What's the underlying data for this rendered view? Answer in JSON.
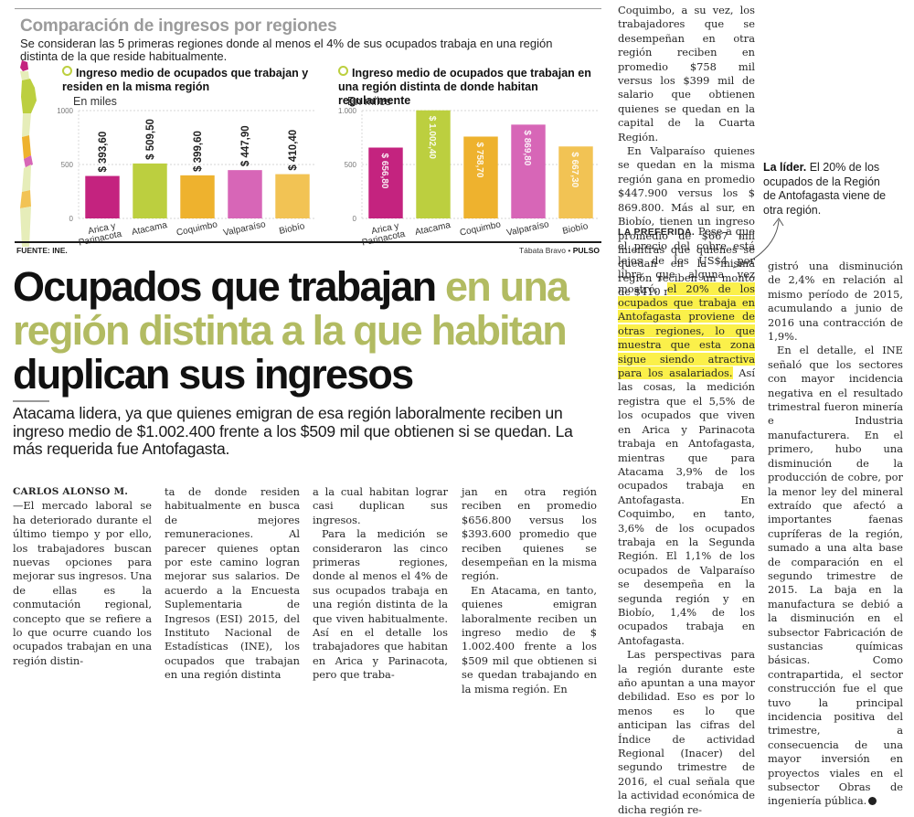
{
  "infographic": {
    "title": "Comparación de ingresos por regiones",
    "subtitle": "Se consideran las 5 primeras regiones donde al menos el 4% de sus ocupados trabaja en una región distinta de la que reside habitualmente.",
    "source": "FUENTE: INE.",
    "credit_author": "Tábata Bravo",
    "credit_separator": "•",
    "credit_outlet": "PULSO",
    "map_icon": "chile-map-icon",
    "colors": {
      "arica": "#c4237f",
      "atacama": "#bccf3f",
      "coquimbo": "#eeb22e",
      "valparaiso": "#d766b7",
      "biobio": "#f2c354"
    }
  },
  "chart_data": [
    {
      "type": "bar",
      "title": "Ingreso medio de ocupados que trabajan y residen en la misma región",
      "subtitle": "En miles",
      "categories": [
        "Arica y Parinacota",
        "Atacama",
        "Coquimbo",
        "Valparaíso",
        "Biobío"
      ],
      "values": [
        393.6,
        509.5,
        399.6,
        447.9,
        410.4
      ],
      "data_labels": [
        "$ 393,60",
        "$ 509,50",
        "$ 399,60",
        "$ 447,90",
        "$ 410,40"
      ],
      "data_label_position": "above",
      "yticks": [
        "0",
        "500",
        "1000"
      ],
      "ytick_values": [
        0,
        500,
        1000
      ],
      "ylim": [
        0,
        1000
      ],
      "grid": true,
      "xlabel": "",
      "ylabel": ""
    },
    {
      "type": "bar",
      "title": "Ingreso medio de ocupados que trabajan en una región distinta de donde habitan regularmente",
      "subtitle": "En miles",
      "categories": [
        "Arica y Parinacota",
        "Atacama",
        "Coquimbo",
        "Valparaíso",
        "Biobío"
      ],
      "values": [
        656.8,
        1002.4,
        758.7,
        869.8,
        667.3
      ],
      "data_labels": [
        "$ 656,80",
        "$ 1.002,40",
        "$ 758,70",
        "$ 869,80",
        "$ 667,30"
      ],
      "data_label_position": "inside",
      "yticks": [
        "0",
        "500",
        "1.000"
      ],
      "ytick_values": [
        0,
        500,
        1000
      ],
      "ylim": [
        0,
        1000
      ],
      "grid": true,
      "xlabel": "",
      "ylabel": ""
    }
  ],
  "headline": {
    "part1": "Ocupados que trabajan ",
    "part2_accent": "en una región distinta a la que habitan",
    "part3": " duplican sus ingresos"
  },
  "deck": "Atacama lidera, ya que quienes emigran de esa región laboralmente reciben un ingreso medio de $1.002.400 frente a los $509 mil que obtienen si se quedan. La más requerida fue Antofagasta.",
  "article": {
    "byline": "CARLOS ALONSO M.",
    "col1_text": "—El mercado laboral se ha deteriorado durante el último tiempo y por ello, los trabajadores buscan nuevas opciones para mejorar sus ingresos. Una de ellas es la conmutación regional, concepto que se refiere a lo que ocurre cuando los ocupados trabajan en una región distin-",
    "col2_text": "ta de donde residen habitualmente en busca de mejores remuneraciones. Al parecer quienes optan por este camino logran mejorar sus salarios. De acuerdo a la Encuesta Suplementaria de Ingresos (ESI) 2015, del Instituto Nacional de Estadísticas (INE), los ocupados que trabajan en una región distinta",
    "col3_p1": "a la cual habitan lograr casi duplican sus ingresos.",
    "col3_p2": "Para la medición se consideraron las cinco primeras regiones, donde al menos el 4% de sus ocupados trabaja en una región distinta de la que viven habitualmente. Así en el detalle los trabajadores que habitan en Arica y Parinacota, pero que traba-",
    "col4_p1": "jan en otra región reciben en promedio $656.800 versus los $393.600 promedio que reciben quienes se desempeñan en la misma región.",
    "col4_p2": "En Atacama, en tanto, quienes emigran laboralmente reciben un ingreso medio de $ 1.002.400 frente a los $509 mil que obtienen si se quedan trabajando en la misma región. En",
    "col5_p1": "Coquimbo, a su vez, los trabajadores que se desempeñan en otra región reciben en promedio $758 mil versus los $399 mil de salario que obtienen quienes se quedan en la capital de la Cuarta Región.",
    "col5_p2": "En Valparaíso quienes se quedan en la misma región gana en promedio $447.900 versus los $ 869.800. Más al sur, en Biobío, tienen un ingreso promedio de $667 mil mientras que quienes se quedan en la misma región reciben un monto de $410 mil.",
    "col6_lead": "LA PREFERIDA.",
    "col6_p1_before": " Pese a que el precio del cobre está lejos de los US$4 por libra que alguna vez mostró, ",
    "col6_p1_highlight": "el 20% de los ocupados que trabaja en Antofagasta proviene de otras regiones, lo que muestra que esta zona sigue siendo atractiva para los asalariados.",
    "col6_p1_after": " Así las cosas, la medición registra que el 5,5% de los ocupados que viven en Arica y Parinacota trabaja en Antofagasta, mientras que para Atacama 3,9% de los ocupados trabaja en Antofagasta. En Coquimbo, en tanto, 3,6% de los ocupados trabaja en la Segunda Región. El 1,1% de los ocupados de Valparaíso se desempeña en la segunda región y en Biobío, 1,4% de los ocupados trabaja en Antofagasta.",
    "col6_p2": "Las perspectivas para la región durante este año apuntan a una mayor debilidad. Eso es por lo menos es lo que anticipan las cifras del Índice de actividad Regional (Inacer) del segundo trimestre de 2016, el cual señala que la actividad económica de dicha región re-",
    "col7_p1": "gistró una disminución de 2,4% en relación al mismo período de 2015, acumulando a junio de 2016 una contracción de 1,9%.",
    "col7_p2": "En el detalle, el INE señaló que los sectores con mayor incidencia negativa en el resultado trimestral fueron minería e Industria manufacturera. En el primero, hubo una disminución de la producción de cobre, por la menor ley del mineral extraído que afectó a importantes faenas cupríferas de la región, sumado a una alta base de comparación en el segundo trimestre de 2015. La baja en la manufactura se debió a la disminución en el subsector Fabricación de sustancias químicas básicas. Como contrapartida, el sector construcción fue el que tuvo la principal incidencia positiva del trimestre, a consecuencia de una mayor inversión en proyectos viales en el subsector Obras de ingeniería pública.",
    "end_icon": "pulso-logo-icon"
  },
  "sidenote": {
    "lead": "La líder.",
    "text": " El 20% de los ocupados de la Región de Antofagasta viene de otra región.",
    "arrow_icon": "curved-arrow-icon"
  }
}
